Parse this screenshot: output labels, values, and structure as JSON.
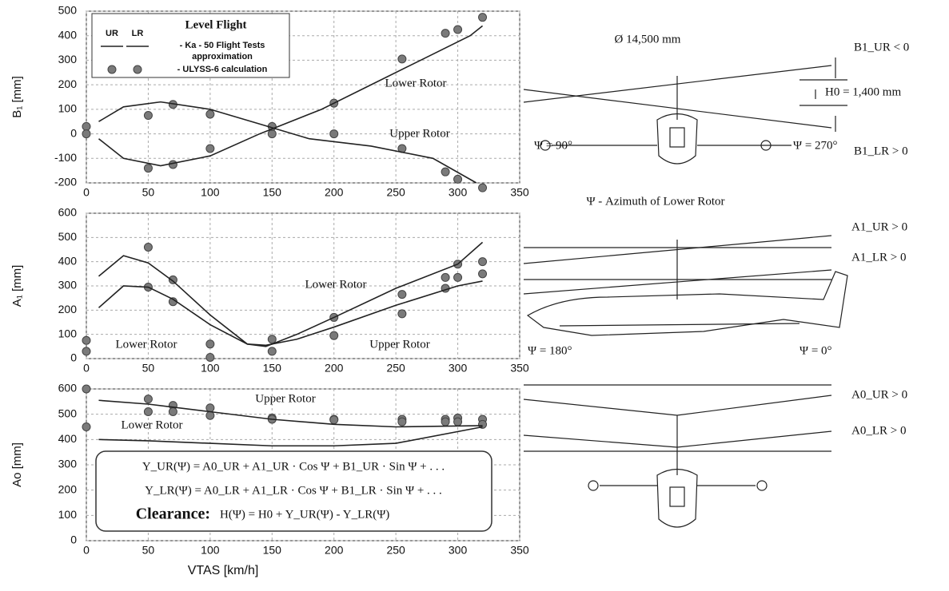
{
  "chart_data": [
    {
      "type": "scatter",
      "ylabel": "B₁ [mm]",
      "xlim": [
        0,
        350
      ],
      "xticks": [
        0,
        50,
        100,
        150,
        200,
        250,
        300,
        350
      ],
      "ylim": [
        -200,
        500
      ],
      "yticks": [
        -200,
        -100,
        0,
        100,
        200,
        300,
        400,
        500
      ],
      "grid": true,
      "legend": {
        "title": "Level Flight",
        "columns": [
          "UR",
          "LR"
        ],
        "line_text": "- Ka - 50 Flight Tests",
        "line_text_2": "approximation",
        "marker_text": "- ULYSS-6 calculation"
      },
      "annotations": [
        "Lower Rotor",
        "Upper Rotor"
      ],
      "series": [
        {
          "style": "markers",
          "color": "#7a7a7a",
          "x": [
            0,
            50,
            70,
            100,
            150,
            200,
            255,
            290,
            300,
            320
          ],
          "values": [
            30,
            75,
            120,
            80,
            0,
            0,
            -60,
            -155,
            -185,
            -220
          ]
        },
        {
          "style": "markers",
          "color": "#7a7a7a",
          "x": [
            0,
            50,
            70,
            100,
            150,
            200,
            255,
            290,
            300,
            320
          ],
          "values": [
            0,
            -140,
            -125,
            -60,
            30,
            125,
            305,
            410,
            425,
            475
          ]
        },
        {
          "style": "line",
          "color": "#222",
          "x": [
            10,
            30,
            60,
            100,
            140,
            180,
            230,
            280,
            315
          ],
          "values": [
            50,
            110,
            130,
            100,
            40,
            -20,
            -50,
            -100,
            -200
          ]
        },
        {
          "style": "line",
          "color": "#222",
          "x": [
            10,
            30,
            60,
            100,
            140,
            190,
            230,
            270,
            310,
            320
          ],
          "values": [
            -20,
            -100,
            -130,
            -90,
            0,
            100,
            200,
            300,
            400,
            440
          ]
        }
      ]
    },
    {
      "type": "scatter",
      "ylabel": "A₁ [mm]",
      "xlim": [
        0,
        350
      ],
      "xticks": [
        0,
        50,
        100,
        150,
        200,
        250,
        300,
        350
      ],
      "ylim": [
        0,
        600
      ],
      "yticks": [
        0,
        100,
        200,
        300,
        400,
        500,
        600
      ],
      "grid": true,
      "annotations": [
        "Lower Rotor",
        "Lower Rotor",
        "Upper Rotor"
      ],
      "series": [
        {
          "style": "markers",
          "color": "#7a7a7a",
          "x": [
            0,
            50,
            70,
            100,
            150,
            200,
            255,
            290,
            300,
            320
          ],
          "values": [
            30,
            295,
            235,
            5,
            30,
            95,
            185,
            290,
            335,
            350
          ]
        },
        {
          "style": "markers",
          "color": "#7a7a7a",
          "x": [
            0,
            50,
            70,
            100,
            150,
            200,
            255,
            290,
            300,
            320
          ],
          "values": [
            75,
            460,
            325,
            60,
            80,
            170,
            265,
            335,
            390,
            400
          ]
        },
        {
          "style": "line",
          "color": "#222",
          "x": [
            10,
            30,
            50,
            70,
            100,
            130,
            145,
            170,
            200,
            250,
            300,
            320
          ],
          "values": [
            210,
            300,
            295,
            245,
            140,
            60,
            55,
            80,
            130,
            220,
            300,
            320
          ]
        },
        {
          "style": "line",
          "color": "#222",
          "x": [
            10,
            30,
            50,
            70,
            100,
            130,
            145,
            170,
            200,
            250,
            300,
            320
          ],
          "values": [
            340,
            425,
            395,
            320,
            180,
            60,
            50,
            100,
            170,
            290,
            390,
            480
          ]
        }
      ]
    },
    {
      "type": "scatter",
      "ylabel": "Ao [mm]",
      "xlabel": "VTAS [km/h]",
      "xlim": [
        0,
        350
      ],
      "xticks": [
        0,
        50,
        100,
        150,
        200,
        250,
        300,
        350
      ],
      "ylim": [
        0,
        600
      ],
      "yticks": [
        0,
        100,
        200,
        300,
        400,
        500,
        600
      ],
      "grid": true,
      "annotations": [
        "Upper Rotor",
        "Lower Rotor"
      ],
      "formulas": [
        "Y_UR(Ψ) = A0_UR + A1_UR · Cos Ψ + B1_UR · Sin Ψ + . . .",
        "Y_LR(Ψ) = A0_LR + A1_LR · Cos Ψ + B1_LR · Sin Ψ + . . .",
        "Clearance:",
        "H(Ψ) = H0 + Y_UR(Ψ) - Y_LR(Ψ)"
      ],
      "series": [
        {
          "style": "markers",
          "color": "#7a7a7a",
          "x": [
            0,
            50,
            70,
            100,
            150,
            200,
            255,
            290,
            300,
            320
          ],
          "values": [
            600,
            560,
            535,
            525,
            485,
            480,
            480,
            480,
            485,
            480
          ]
        },
        {
          "style": "markers",
          "color": "#7a7a7a",
          "x": [
            0,
            50,
            70,
            100,
            150,
            200,
            255,
            290,
            300,
            320
          ],
          "values": [
            450,
            510,
            510,
            495,
            480,
            478,
            470,
            470,
            470,
            460
          ]
        },
        {
          "style": "line",
          "color": "#222",
          "x": [
            10,
            50,
            100,
            150,
            200,
            250,
            320
          ],
          "values": [
            555,
            540,
            510,
            480,
            460,
            450,
            455
          ]
        },
        {
          "style": "line",
          "color": "#222",
          "x": [
            10,
            50,
            100,
            150,
            200,
            250,
            320
          ],
          "values": [
            400,
            395,
            385,
            375,
            375,
            385,
            450
          ]
        }
      ]
    }
  ],
  "diagram": {
    "labels": [
      "Ø 14,500 mm",
      "B1_UR < 0",
      "H0 = 1,400 mm",
      "B1_LR > 0",
      "Ψ = 90°",
      "Ψ = 270°",
      "Ψ - Azimuth of Lower Rotor",
      "A1_UR > 0",
      "A1_LR > 0",
      "Ψ = 180°",
      "Ψ = 0°",
      "A0_UR > 0",
      "A0_LR > 0"
    ]
  }
}
